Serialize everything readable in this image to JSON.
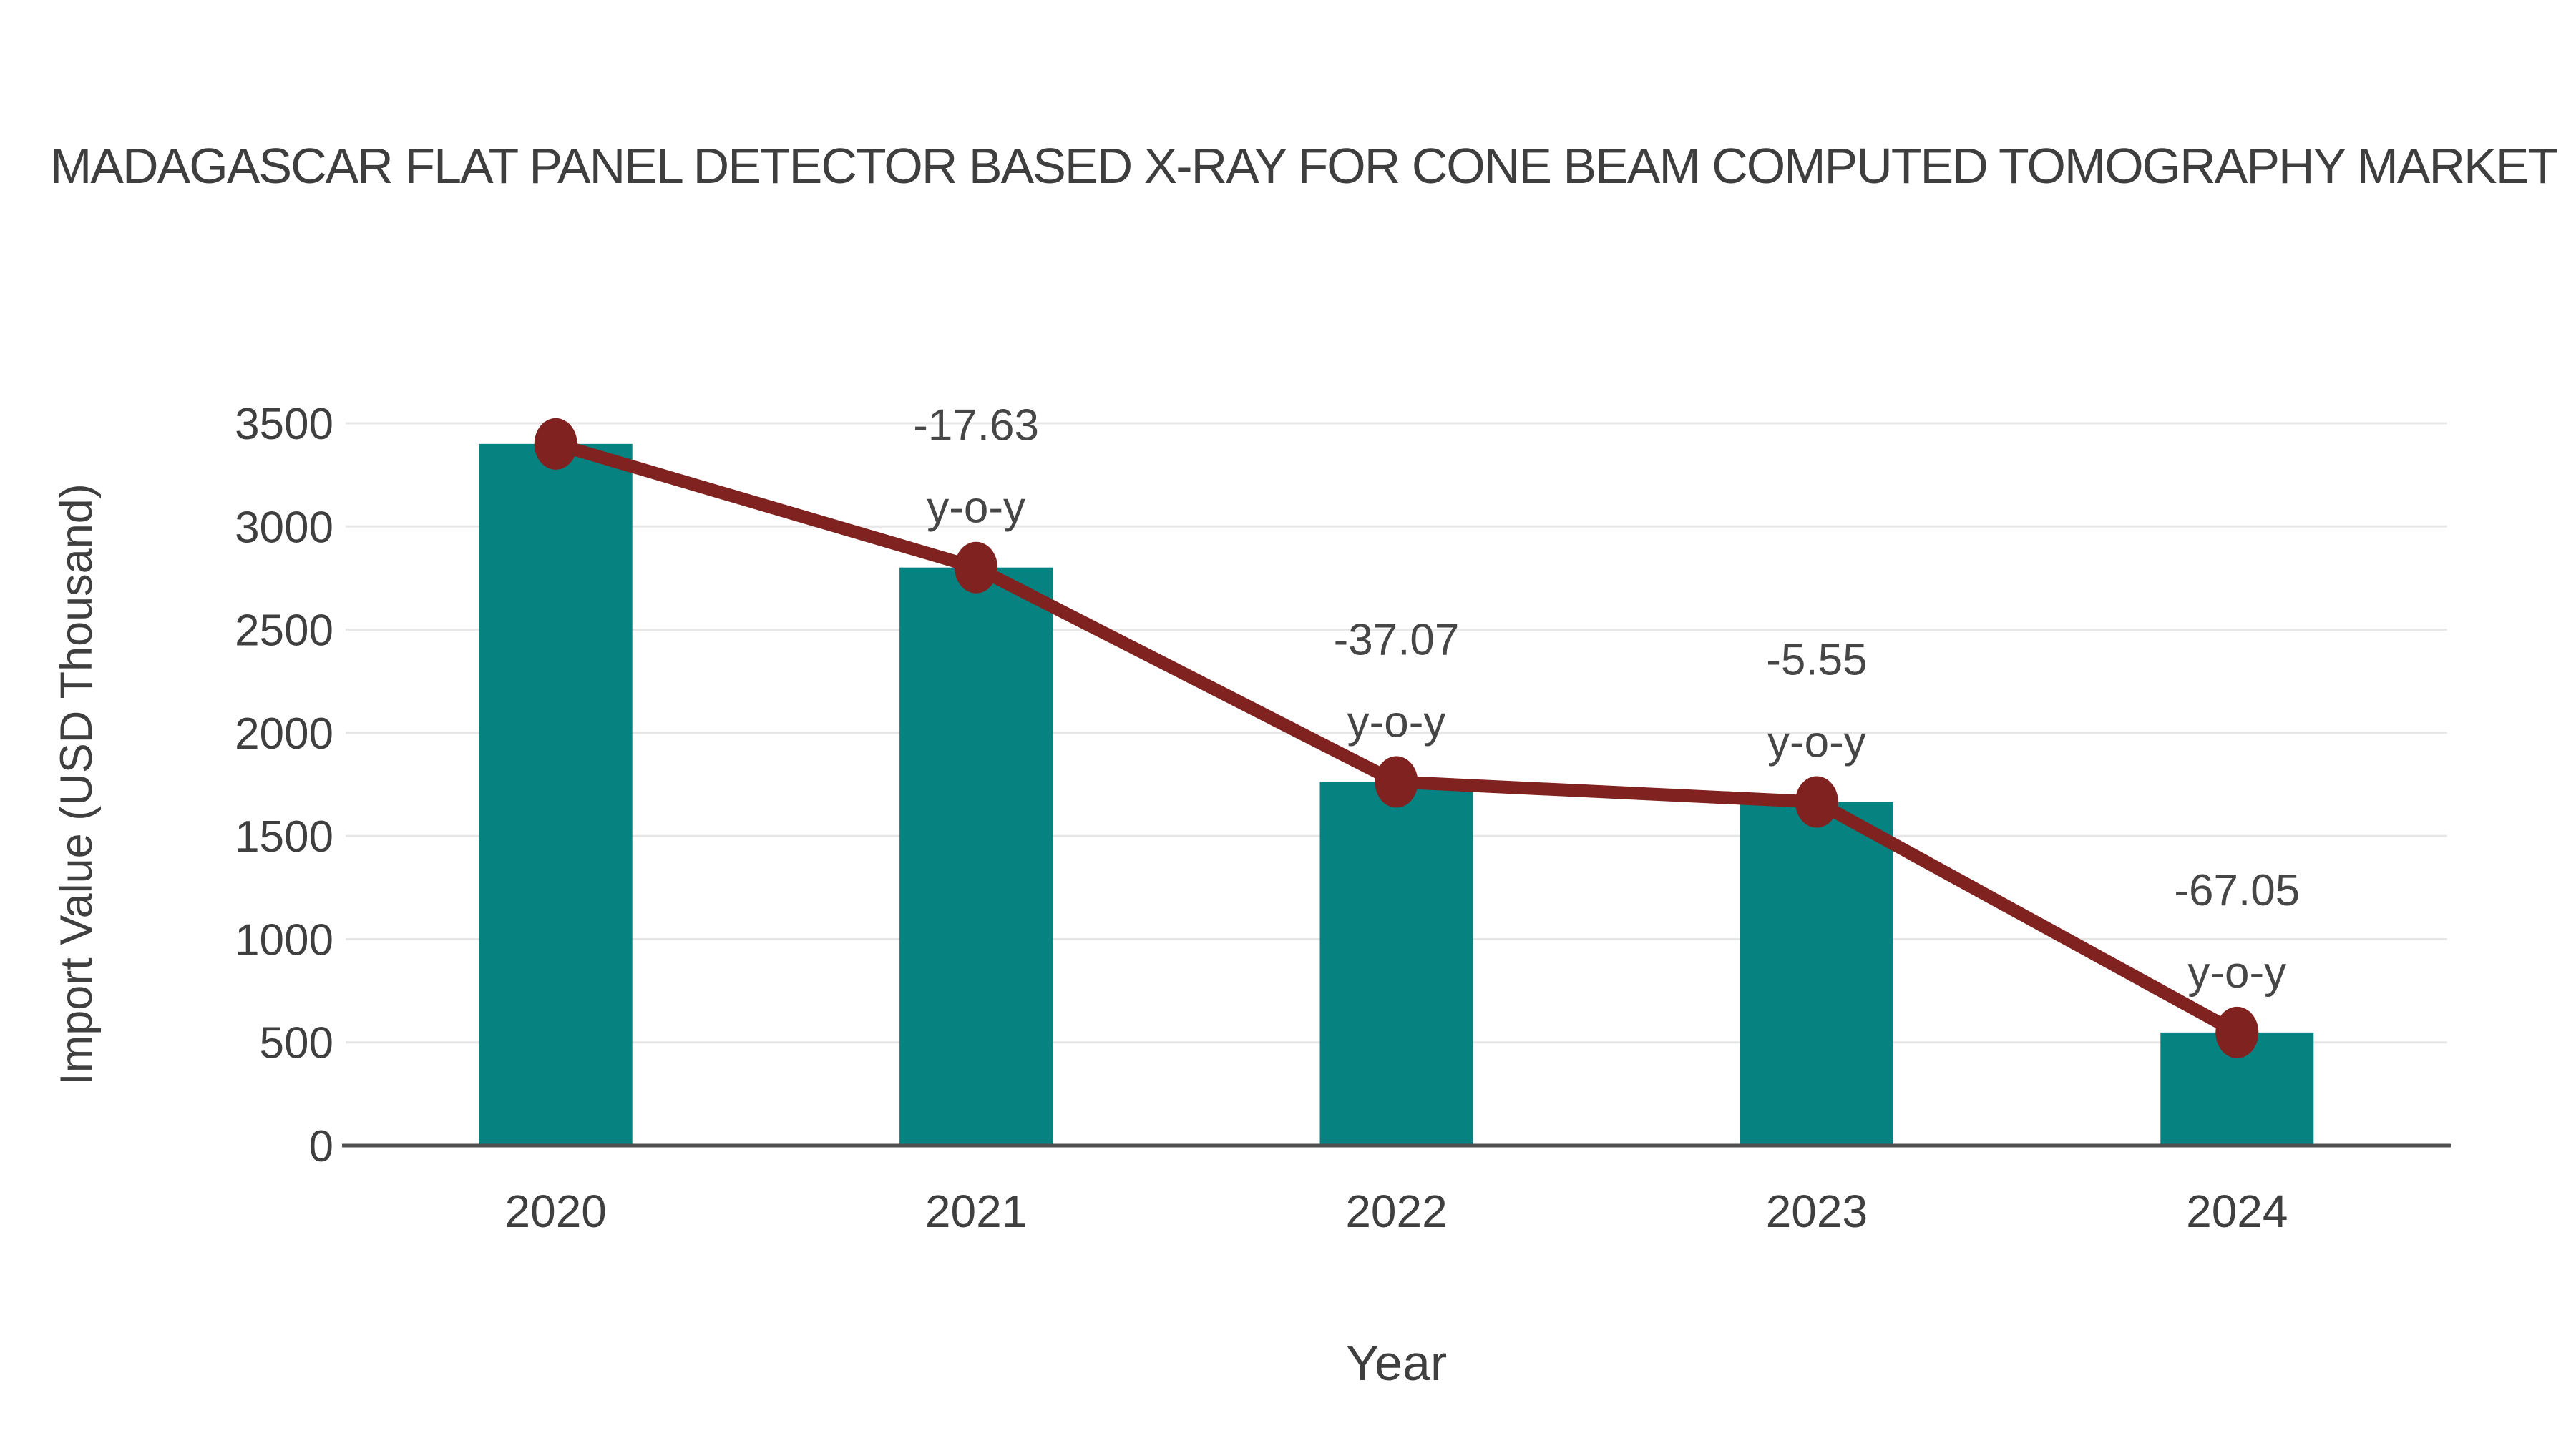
{
  "title": "MADAGASCAR FLAT PANEL DETECTOR BASED X-RAY FOR CONE BEAM COMPUTED TOMOGRAPHY MARKET",
  "chart_data": {
    "type": "bar",
    "subtype": "bar-with-line-overlay",
    "categories": [
      "2020",
      "2021",
      "2022",
      "2023",
      "2024"
    ],
    "series": [
      {
        "name": "Import Value",
        "type": "bar",
        "values": [
          3400,
          2801,
          1762,
          1665,
          548
        ]
      },
      {
        "name": "y-o-y trend line",
        "type": "line",
        "values": [
          3400,
          2801,
          1762,
          1665,
          548
        ]
      }
    ],
    "annotations": [
      {
        "category": "2021",
        "line1": "-17.63",
        "line2": "y-o-y"
      },
      {
        "category": "2022",
        "line1": "-37.07",
        "line2": "y-o-y"
      },
      {
        "category": "2023",
        "line1": "-5.55",
        "line2": "y-o-y"
      },
      {
        "category": "2024",
        "line1": "-67.05",
        "line2": "y-o-y"
      }
    ],
    "xlabel": "Year",
    "ylabel": "Import Value (USD Thousand)",
    "yticks": [
      0,
      500,
      1000,
      1500,
      2000,
      2500,
      3000,
      3500
    ],
    "ylim": [
      0,
      3500
    ],
    "grid": true,
    "legend_position": "none",
    "colors": {
      "bar": "#068280",
      "line": "#802220",
      "marker": "#802220",
      "grid": "#e7e7e7",
      "axis_line": "#4f4f4f",
      "tick_text": "#3f3f3f",
      "annotation_text": "#464646",
      "axis_title_text": "#3f3f3f",
      "title_text": "#3e3e3e",
      "background": "#ffffff"
    }
  }
}
